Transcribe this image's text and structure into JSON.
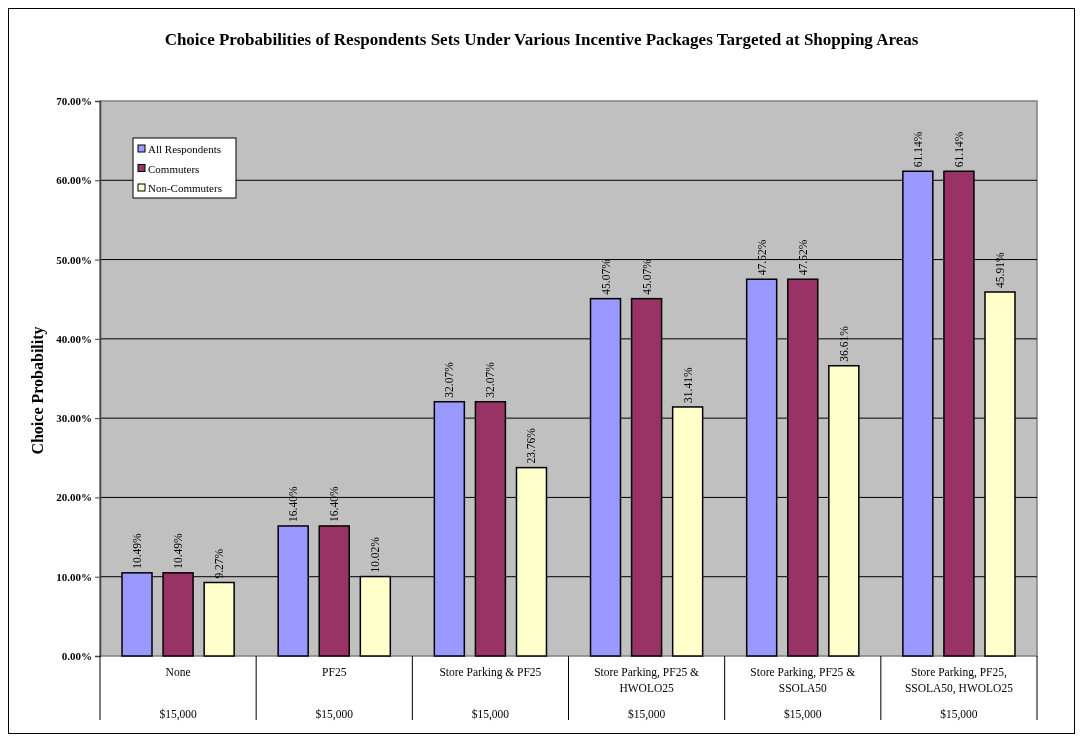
{
  "chart_data": {
    "type": "bar",
    "title": "Choice Probabilities of Respondents Sets Under Various Incentive Packages Targeted at Shopping Areas",
    "ylabel": "Choice Probability",
    "categories": [
      "None\n$15,000",
      "PF25\n$15,000",
      "Store Parking & PF25\n$15,000",
      "Store Parking, PF25 & HWOLO25\n$15,000",
      "Store Parking, PF25 & SSOLA50\n$15,000",
      "Store Parking, PF25, SSOLA50, HWOLO25\n$15,000"
    ],
    "series": [
      {
        "name": "All Respondents",
        "color": "#9999ff",
        "values": [
          10.49,
          16.4,
          32.07,
          45.07,
          47.52,
          61.14
        ],
        "value_labels": [
          "10.49%",
          "16.40%",
          "32.07%",
          "45.07%",
          "47.52%",
          "61.14%"
        ]
      },
      {
        "name": "Commuters",
        "color": "#993366",
        "values": [
          10.49,
          16.4,
          32.07,
          45.07,
          47.52,
          61.14
        ],
        "value_labels": [
          "10.49%",
          "16.40%",
          "32.07%",
          "45.07%",
          "47.52%",
          "61.14%"
        ]
      },
      {
        "name": "Non-Commuters",
        "color": "#ffffcc",
        "values": [
          9.27,
          10.02,
          23.76,
          31.41,
          36.61,
          45.91
        ],
        "value_labels": [
          "9.27%",
          "10.02%",
          "23.76%",
          "31.41%",
          "36.61%",
          "45.91%"
        ]
      }
    ],
    "ylim": [
      0,
      70
    ],
    "yticks": [
      {
        "value": 0,
        "label": "0.00%"
      },
      {
        "value": 10,
        "label": "10.00%"
      },
      {
        "value": 20,
        "label": "20.00%"
      },
      {
        "value": 30,
        "label": "30.00%"
      },
      {
        "value": 40,
        "label": "40.00%"
      },
      {
        "value": 50,
        "label": "50.00%"
      },
      {
        "value": 60,
        "label": "60.00%"
      },
      {
        "value": 70,
        "label": "70.00%"
      }
    ],
    "grid": "y",
    "legend": "top left"
  }
}
